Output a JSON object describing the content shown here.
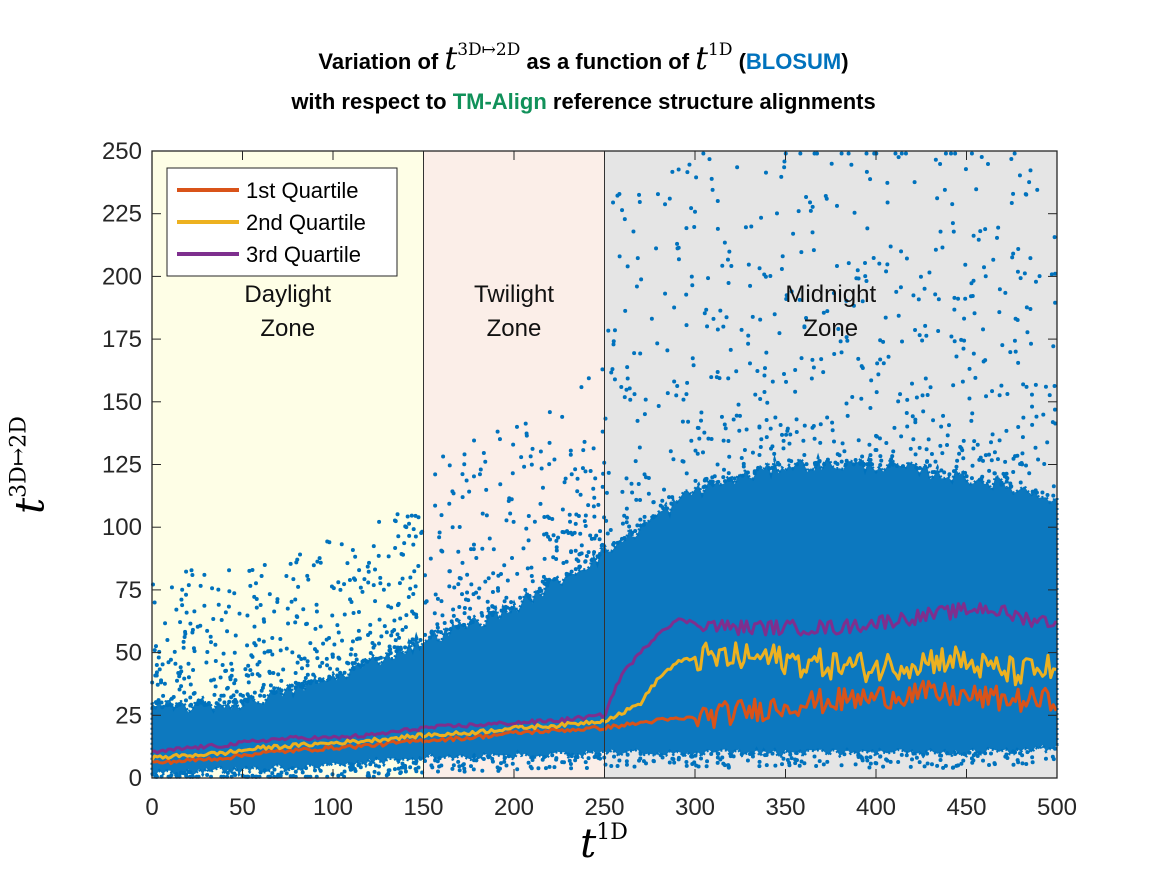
{
  "title": {
    "line1_pre": "Variation of",
    "line1_t3d_base": "t",
    "line1_t3d_sup": "3D↦2D",
    "line1_mid": "as a function of",
    "line1_t1d_base": "t",
    "line1_t1d_sup": "1D",
    "line1_paren_open": "(",
    "line1_blosum": "BLOSUM",
    "line1_paren_close": ")",
    "line2_pre": "with respect to",
    "line2_tmalign": "TM-Align",
    "line2_post": "reference structure alignments"
  },
  "colors": {
    "scatter": "#0072BD",
    "scatter_light": "#1f7fb5",
    "q1": "#D95319",
    "q2": "#EDB120",
    "q3": "#7E2F8E",
    "daylight_bg": "#fefee6",
    "twilight_bg": "#fbeee8",
    "midnight_bg": "#e5e5e5",
    "blosum_text": "#0072BD",
    "tmalign_text": "#11915a"
  },
  "chart_data": {
    "type": "scatter",
    "xlabel_base": "t",
    "xlabel_sup": "1D",
    "ylabel_base": "t",
    "ylabel_sup": "3D↦2D",
    "xlim": [
      0,
      500
    ],
    "ylim": [
      0,
      250
    ],
    "xticks": [
      "0",
      "50",
      "100",
      "150",
      "200",
      "250",
      "300",
      "350",
      "400",
      "450",
      "500"
    ],
    "yticks": [
      "0",
      "25",
      "50",
      "75",
      "100",
      "125",
      "150",
      "175",
      "200",
      "225",
      "250"
    ],
    "grid": false,
    "legend_position": "top-left",
    "zones": [
      {
        "name_line1": "Daylight",
        "name_line2": "Zone",
        "x_range": [
          0,
          150
        ]
      },
      {
        "name_line1": "Twilight",
        "name_line2": "Zone",
        "x_range": [
          150,
          250
        ]
      },
      {
        "name_line1": "Midnight",
        "name_line2": "Zone",
        "x_range": [
          250,
          500
        ]
      }
    ],
    "series": [
      {
        "name": "1st Quartile",
        "x": [
          0,
          20,
          40,
          60,
          80,
          100,
          120,
          150,
          175,
          200,
          225,
          250,
          260,
          270,
          280,
          300,
          320,
          340,
          360,
          380,
          400,
          420,
          440,
          460,
          480,
          500
        ],
        "y": [
          6,
          7,
          8,
          10,
          11,
          12,
          13,
          15,
          16,
          18,
          19,
          20,
          21,
          22,
          23,
          24,
          26,
          28,
          30,
          31,
          32,
          34,
          33,
          32,
          31,
          31
        ]
      },
      {
        "name": "2nd Quartile",
        "x": [
          0,
          20,
          40,
          60,
          80,
          100,
          120,
          150,
          175,
          200,
          225,
          250,
          260,
          270,
          280,
          290,
          300,
          320,
          340,
          360,
          380,
          400,
          420,
          440,
          460,
          480,
          500
        ],
        "y": [
          8,
          9,
          10,
          12,
          13,
          14,
          15,
          17,
          18,
          20,
          21,
          23,
          26,
          30,
          40,
          46,
          48,
          48,
          48,
          46,
          45,
          44,
          46,
          48,
          44,
          42,
          44
        ]
      },
      {
        "name": "3rd Quartile",
        "x": [
          0,
          20,
          40,
          60,
          80,
          100,
          120,
          150,
          175,
          200,
          225,
          250,
          255,
          260,
          270,
          280,
          290,
          300,
          320,
          340,
          360,
          380,
          400,
          420,
          440,
          460,
          480,
          500
        ],
        "y": [
          10,
          12,
          13,
          15,
          16,
          16,
          17,
          20,
          21,
          22,
          23,
          25,
          34,
          42,
          50,
          58,
          63,
          62,
          60,
          60,
          60,
          60,
          62,
          64,
          66,
          68,
          64,
          62
        ]
      }
    ],
    "scatter_band": {
      "name": "BLOSUM",
      "x": [
        0,
        50,
        100,
        150,
        200,
        250,
        300,
        350,
        400,
        450,
        500
      ],
      "y_low": [
        2,
        3,
        5,
        8,
        9,
        10,
        10,
        10,
        10,
        10,
        12
      ],
      "y_high": [
        28,
        30,
        40,
        55,
        68,
        90,
        115,
        125,
        125,
        120,
        112
      ]
    }
  }
}
